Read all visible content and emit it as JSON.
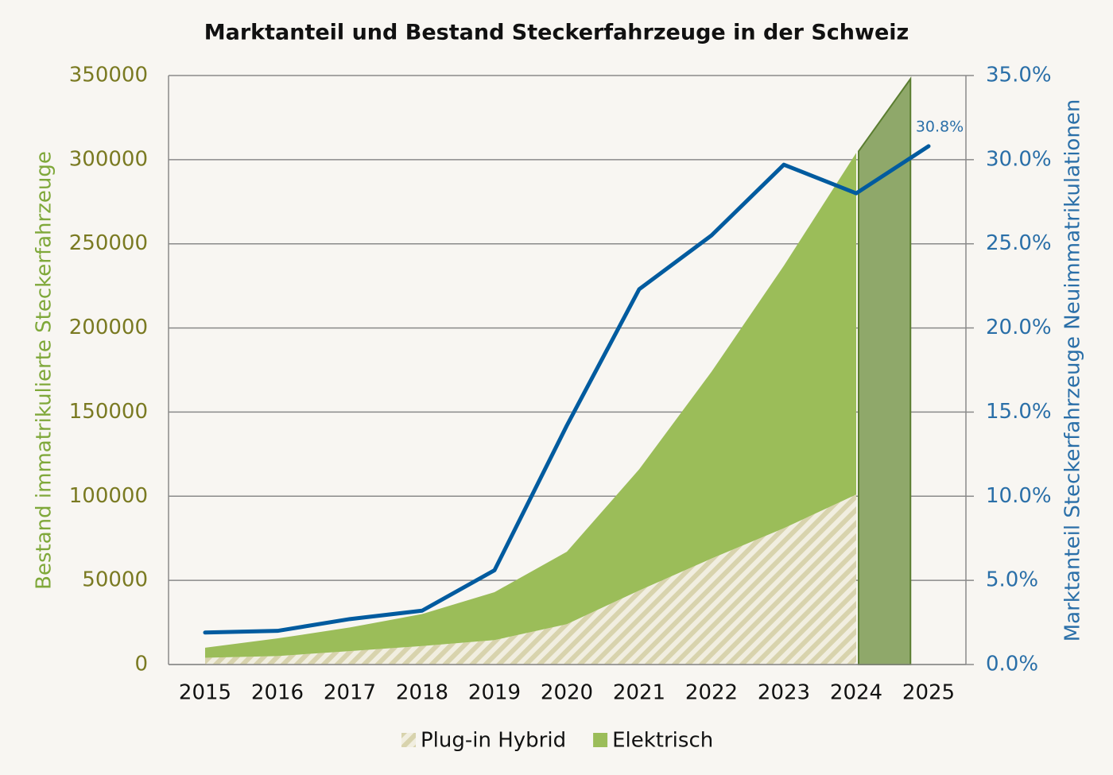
{
  "chart_data": {
    "type": "stacked_area_line",
    "title": "Marktanteil und Bestand Steckerfahrzeuge in der Schweiz",
    "y_label": "Bestand immatrikulierte Steckerfahrzeuge",
    "y2_label": "Marktanteil Steckerfahrzeuge Neuimmatrikulationen",
    "categories": [
      "2015",
      "2016",
      "2017",
      "2018",
      "2019",
      "2020",
      "2021",
      "2022",
      "2023",
      "2024",
      "2025"
    ],
    "series": [
      {
        "name": "Plug-in Hybrid",
        "color": "#d8d3ad",
        "pattern": "hatch",
        "values": [
          4000,
          5000,
          8000,
          11000,
          14500,
          24000,
          44000,
          63000,
          81000,
          101000,
          null
        ]
      },
      {
        "name": "Elektrisch",
        "color": "#9bbd59",
        "values": [
          6000,
          10500,
          14000,
          19000,
          28500,
          43000,
          72000,
          111000,
          156000,
          203000,
          null
        ]
      },
      {
        "axis": "y2",
        "color": "#005b9f",
        "values": [
          1.9,
          2.0,
          2.7,
          3.2,
          5.6,
          14.2,
          22.3,
          25.5,
          29.7,
          28.0,
          30.8
        ],
        "value_labels": [
          null,
          null,
          null,
          null,
          null,
          null,
          null,
          null,
          null,
          null,
          "30.8%"
        ]
      }
    ],
    "forecast": {
      "color": "#8fa86a",
      "stroke": "#5a7d30",
      "values": [
        305000,
        348000
      ]
    },
    "ylim": [
      0,
      350000
    ],
    "yticks": [
      0,
      50000,
      100000,
      150000,
      200000,
      250000,
      300000,
      350000
    ],
    "y2lim": [
      0,
      35
    ],
    "y2ticks": [
      {
        "value": 0,
        "label": "0.0%"
      },
      {
        "value": 5,
        "label": "5.0%"
      },
      {
        "value": 10,
        "label": "10.0%"
      },
      {
        "value": 15,
        "label": "15.0%"
      },
      {
        "value": 20,
        "label": "20.0%"
      },
      {
        "value": 25,
        "label": "25.0%"
      },
      {
        "value": 30,
        "label": "30.0%"
      },
      {
        "value": 35,
        "label": "35.0%"
      }
    ],
    "grid": true,
    "legend": "bottom"
  }
}
